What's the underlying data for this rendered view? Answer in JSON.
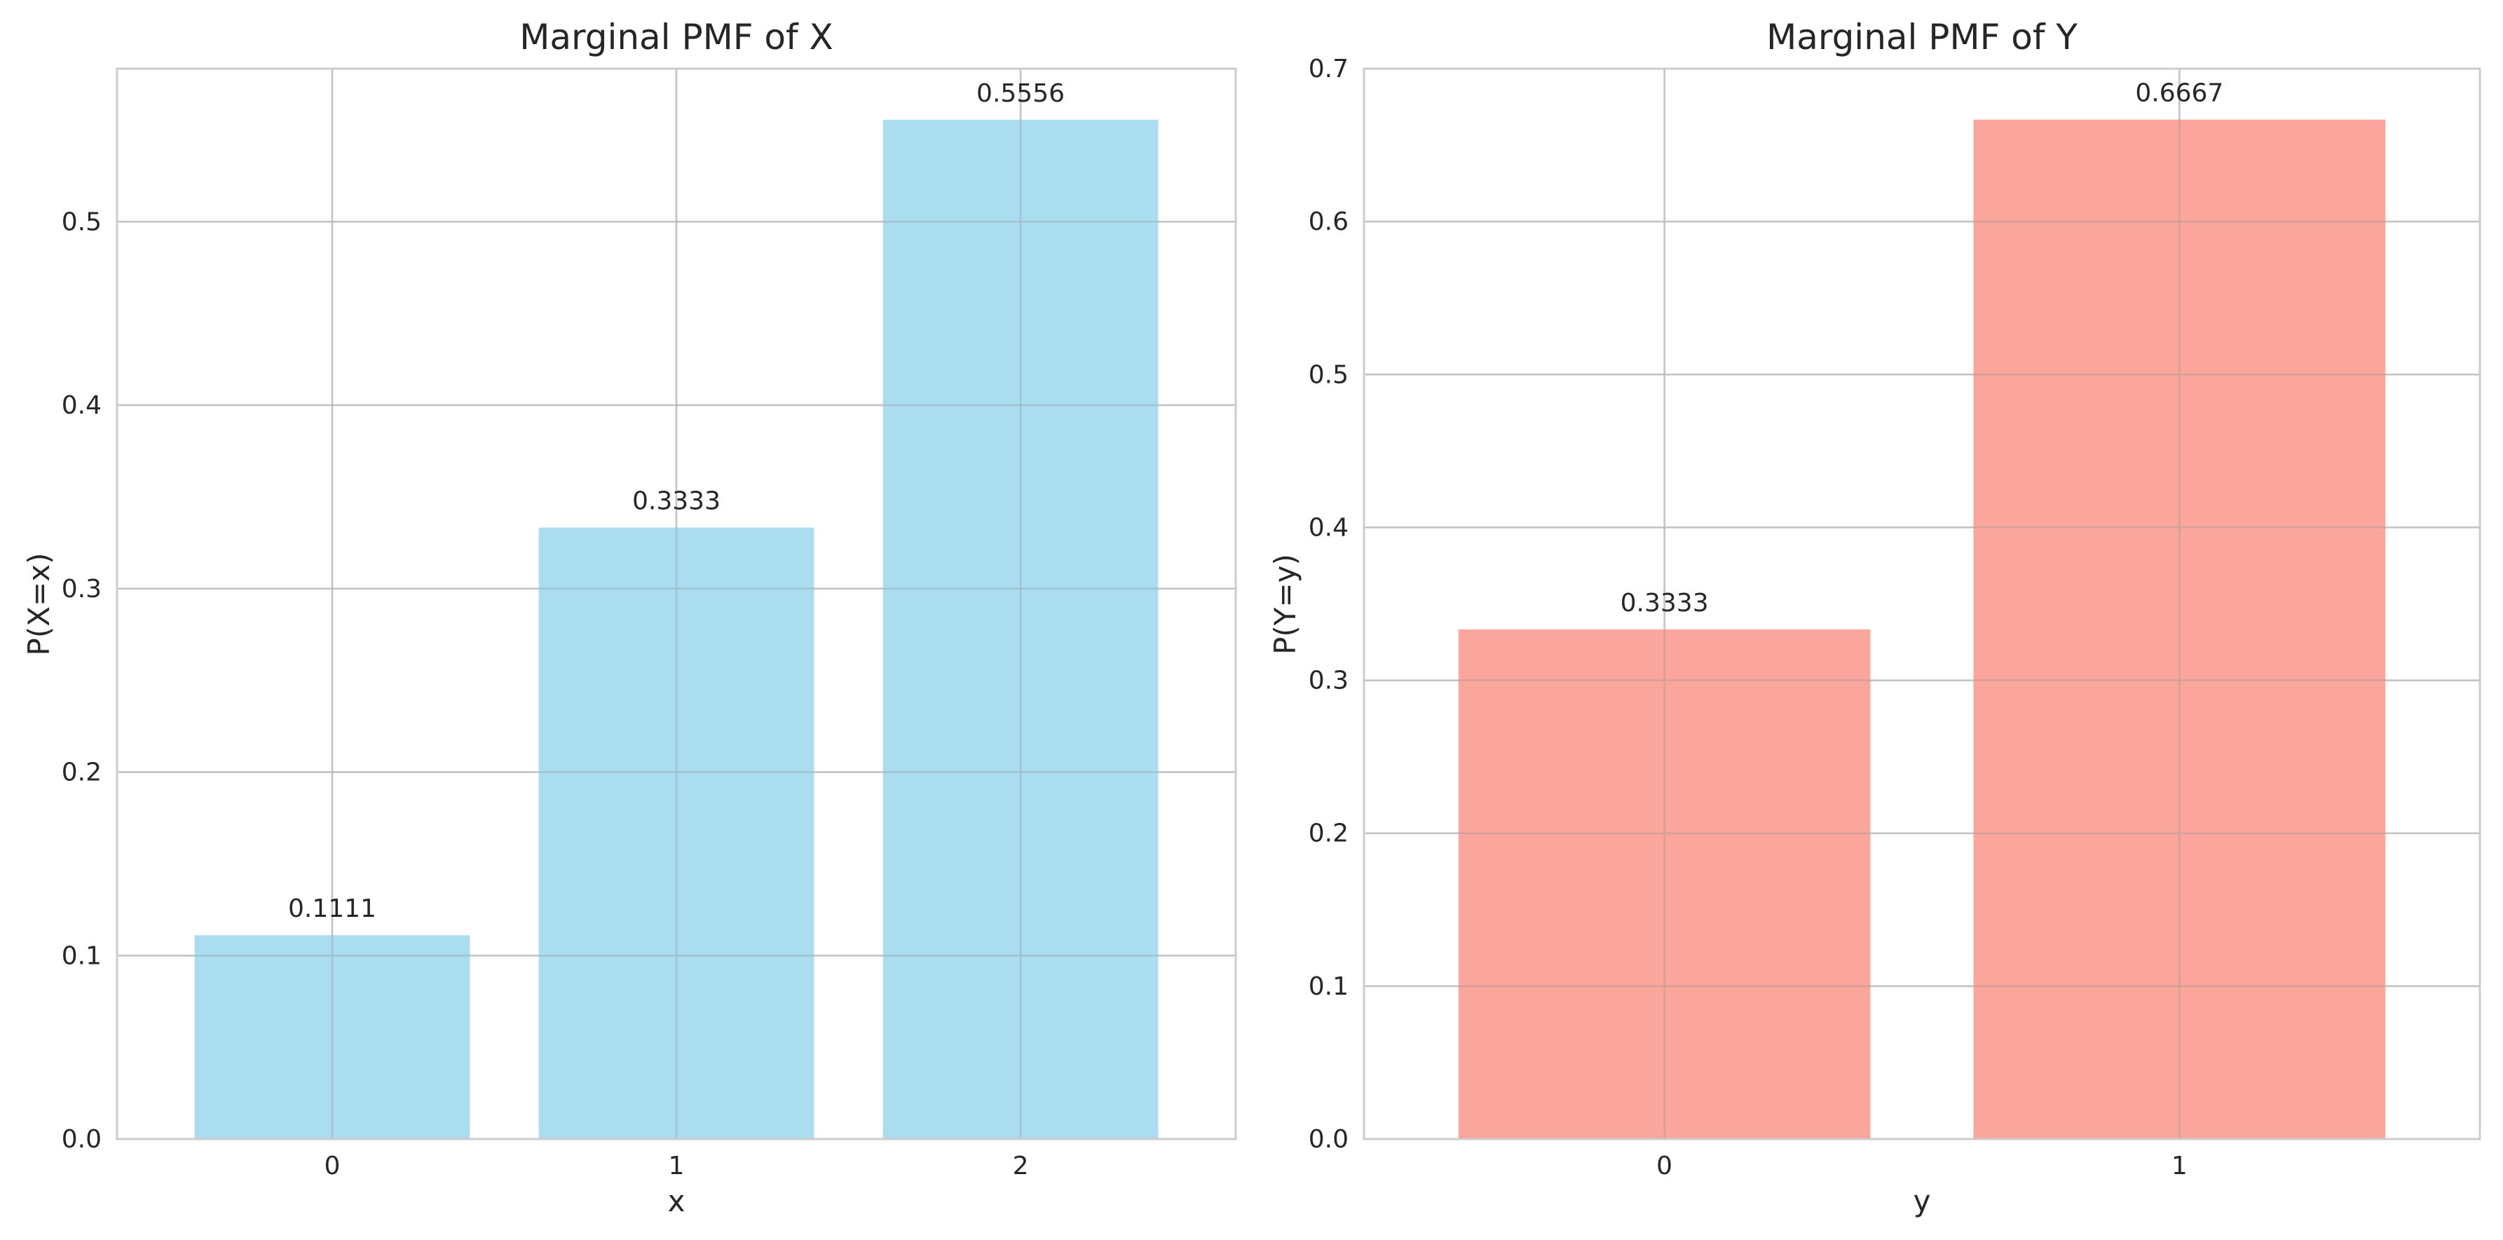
{
  "chart_data": [
    {
      "type": "bar",
      "title": "Marginal PMF of X",
      "xlabel": "x",
      "ylabel": "P(X=x)",
      "categories": [
        "0",
        "1",
        "2"
      ],
      "values": [
        0.1111,
        0.3333,
        0.5556
      ],
      "data_labels": [
        "0.1111",
        "0.3333",
        "0.5556"
      ],
      "yticks": [
        "0.0",
        "0.1",
        "0.2",
        "0.3",
        "0.4",
        "0.5"
      ],
      "ytick_values": [
        0,
        0.1,
        0.2,
        0.3,
        0.4,
        0.5
      ],
      "ylim": [
        0,
        0.5834
      ],
      "grid": true,
      "legend": "none",
      "color": "#87CEEB"
    },
    {
      "type": "bar",
      "title": "Marginal PMF of Y",
      "xlabel": "y",
      "ylabel": "P(Y=y)",
      "categories": [
        "0",
        "1"
      ],
      "values": [
        0.3333,
        0.6667
      ],
      "data_labels": [
        "0.3333",
        "0.6667"
      ],
      "yticks": [
        "0.0",
        "0.1",
        "0.2",
        "0.3",
        "0.4",
        "0.5",
        "0.6",
        "0.7"
      ],
      "ytick_values": [
        0,
        0.1,
        0.2,
        0.3,
        0.4,
        0.5,
        0.6,
        0.7
      ],
      "ylim": [
        0,
        0.7
      ],
      "grid": true,
      "legend": "none",
      "color": "#FA8072"
    }
  ]
}
